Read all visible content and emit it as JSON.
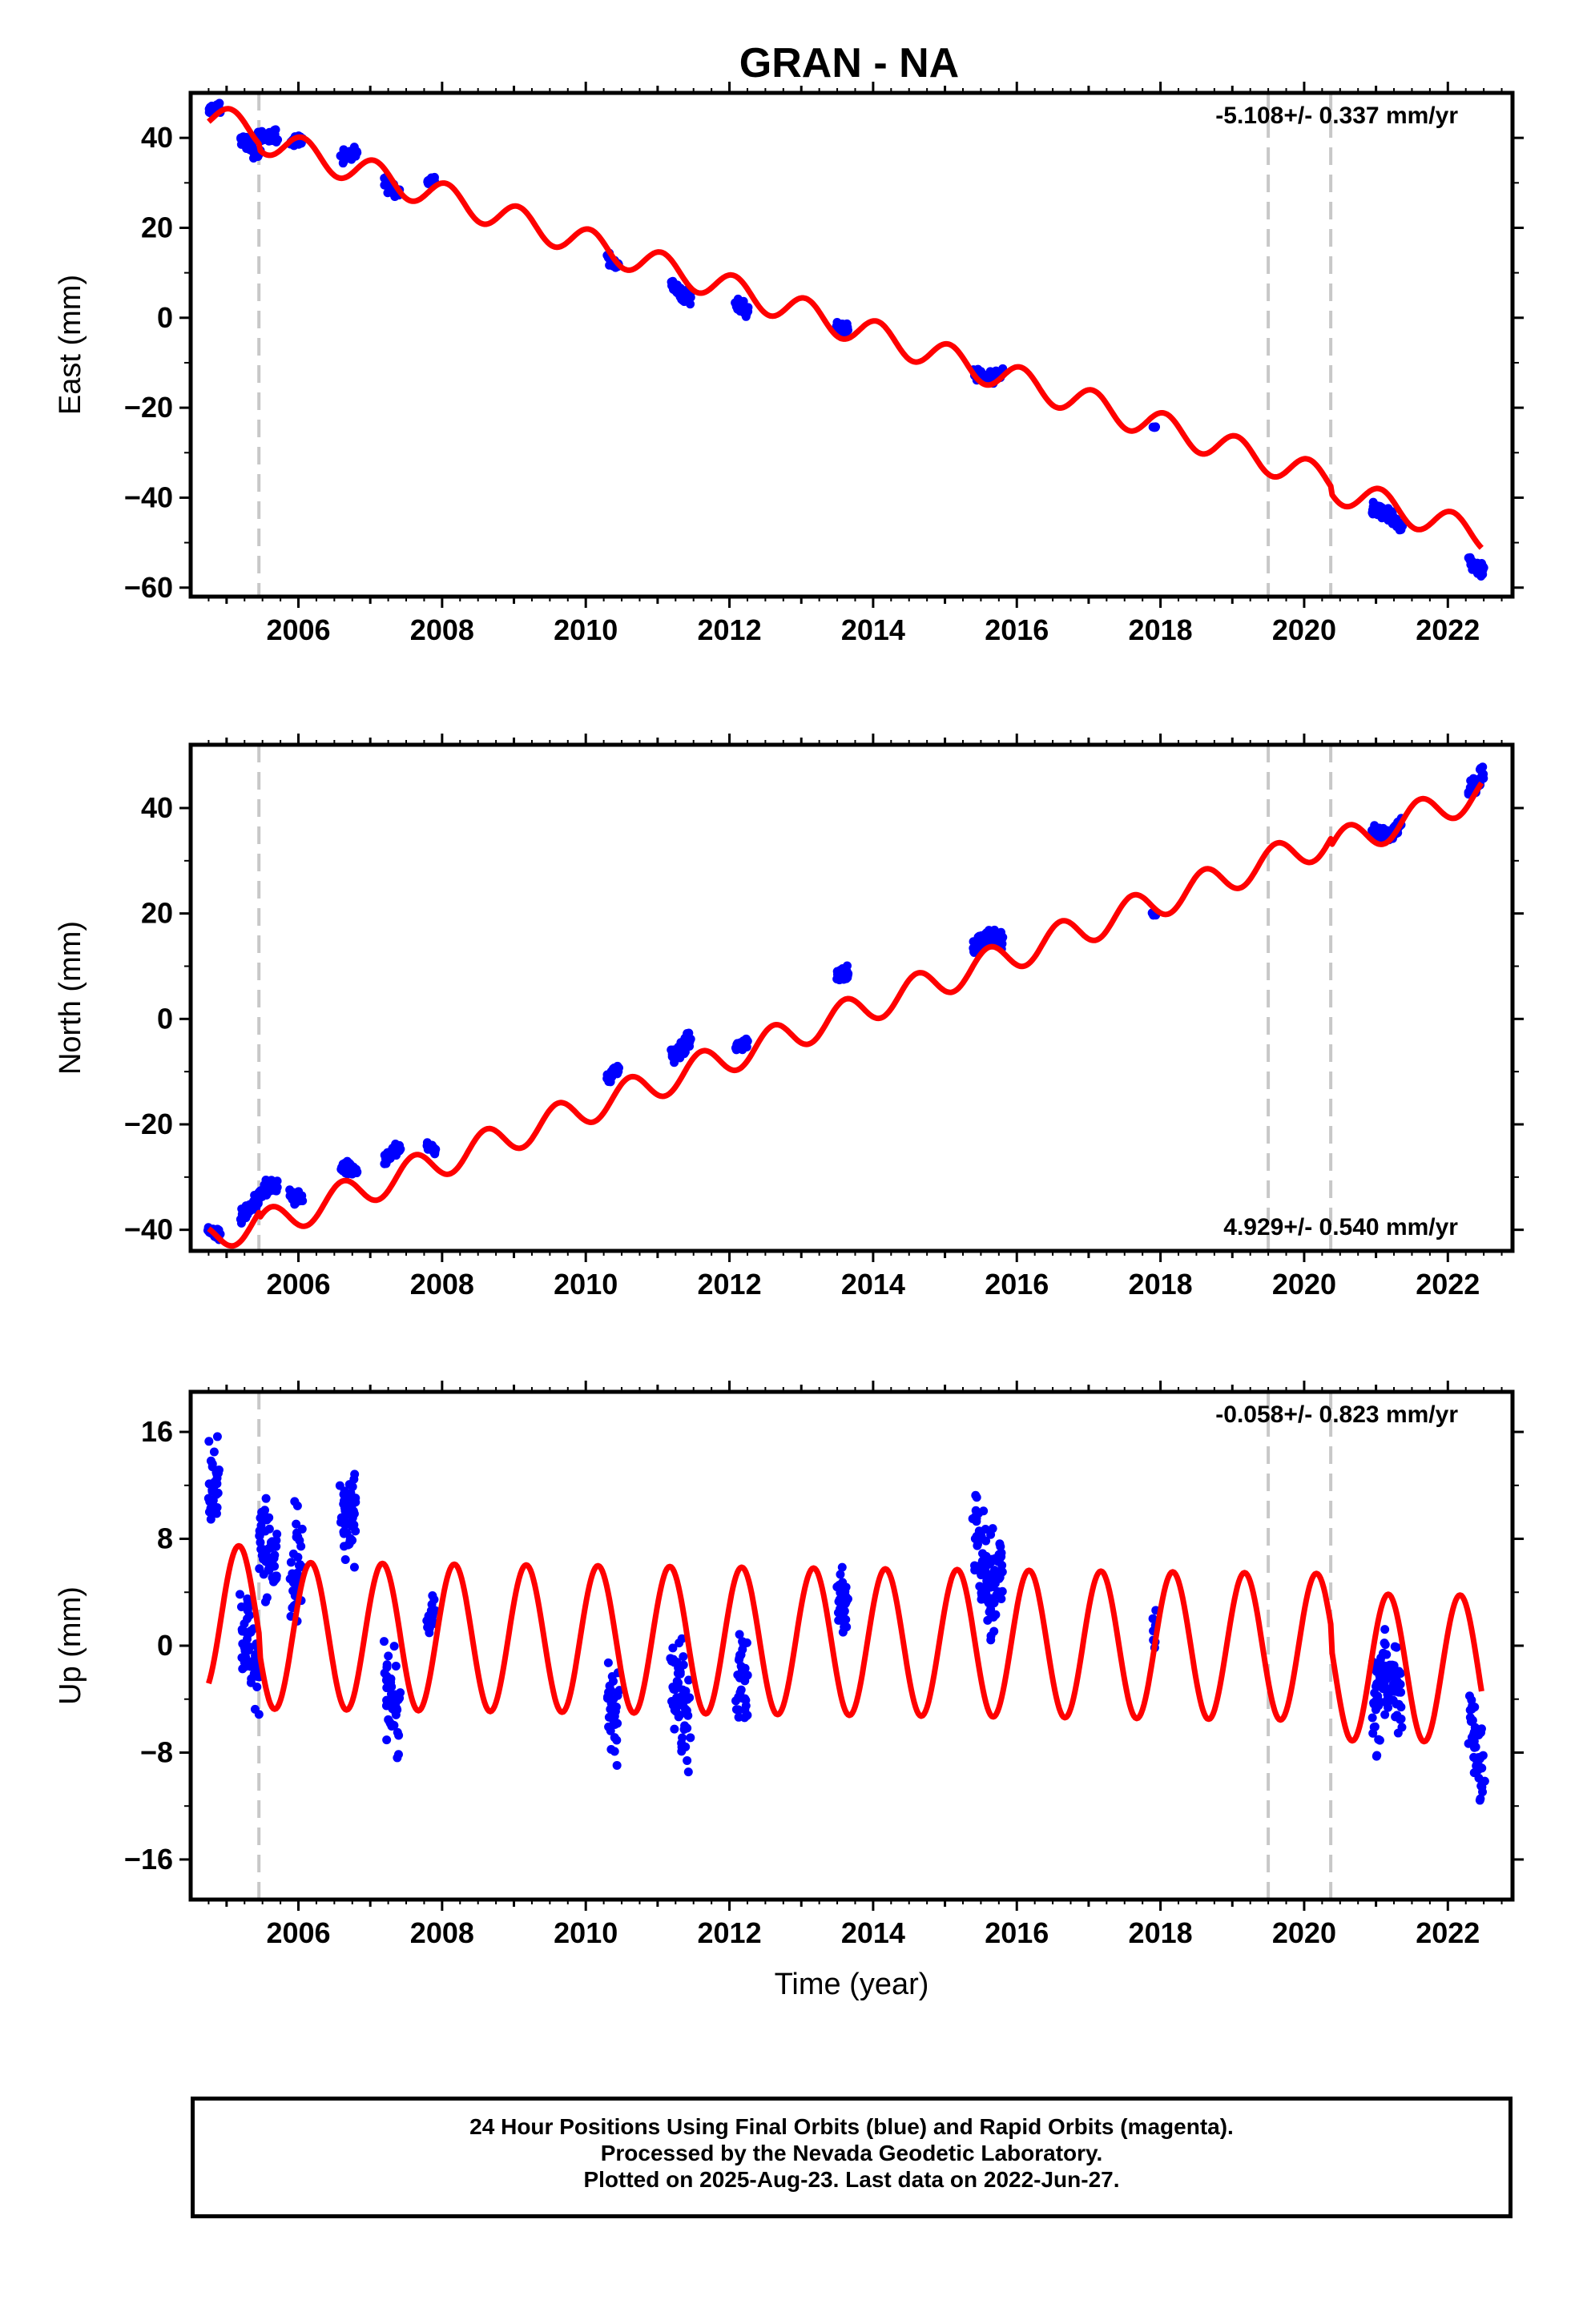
{
  "title": "GRAN - NA",
  "footer": {
    "line1": "24 Hour Positions Using Final Orbits (blue) and Rapid Orbits (magenta).",
    "line2": "Processed by the Nevada Geodetic Laboratory.",
    "line3": "Plotted on 2025-Aug-23. Last data on 2022-Jun-27."
  },
  "colors": {
    "data": "#0000ff",
    "model": "#ff0000",
    "breaks": "#c8c8c8",
    "axes": "#000000"
  },
  "chart_data": [
    {
      "type": "scatter",
      "ylabel": "East (mm)",
      "xlabel": "",
      "annotation": "-5.108+/- 0.337 mm/yr",
      "annotation_position": "top-right",
      "xlim": [
        2004.5,
        2022.9
      ],
      "ylim": [
        -62,
        50
      ],
      "yticks": [
        40,
        20,
        0,
        -20,
        -40,
        -60
      ],
      "xticks": [
        2006,
        2008,
        2010,
        2012,
        2014,
        2016,
        2018,
        2020,
        2022
      ],
      "breaks": [
        2005.45,
        2019.5,
        2020.37
      ],
      "trend": {
        "rate_mm_per_yr": -5.108,
        "value_at_2004_8": 44.5,
        "annual_amp": 3.2,
        "annual_phase": 1.2
      },
      "observed_clusters": [
        {
          "start": 2004.75,
          "end": 2004.9,
          "center": 46.5,
          "spread": 1.6
        },
        {
          "start": 2005.2,
          "end": 2005.45,
          "center": 38.0,
          "spread": 2.0
        },
        {
          "start": 2005.45,
          "end": 2005.7,
          "center": 40.0,
          "spread": 2.0
        },
        {
          "start": 2005.9,
          "end": 2006.05,
          "center": 39.5,
          "spread": 1.5
        },
        {
          "start": 2006.6,
          "end": 2006.8,
          "center": 36.0,
          "spread": 2.0
        },
        {
          "start": 2007.2,
          "end": 2007.4,
          "center": 29.0,
          "spread": 2.0
        },
        {
          "start": 2007.8,
          "end": 2007.9,
          "center": 30.5,
          "spread": 0.8
        },
        {
          "start": 2010.3,
          "end": 2010.45,
          "center": 12.5,
          "spread": 1.5
        },
        {
          "start": 2011.2,
          "end": 2011.45,
          "center": 5.5,
          "spread": 2.0
        },
        {
          "start": 2012.1,
          "end": 2012.25,
          "center": 2.5,
          "spread": 2.0
        },
        {
          "start": 2013.5,
          "end": 2013.65,
          "center": -2.5,
          "spread": 1.5
        },
        {
          "start": 2015.4,
          "end": 2015.8,
          "center": -13.5,
          "spread": 1.8
        },
        {
          "start": 2017.9,
          "end": 2017.93,
          "center": -24.3,
          "spread": 0.3
        },
        {
          "start": 2020.95,
          "end": 2021.35,
          "center": -43.5,
          "spread": 2.0
        },
        {
          "start": 2022.3,
          "end": 2022.5,
          "center": -55.5,
          "spread": 2.0
        }
      ]
    },
    {
      "type": "scatter",
      "ylabel": "North (mm)",
      "xlabel": "",
      "annotation": "4.929+/- 0.540 mm/yr",
      "annotation_position": "bottom-right",
      "xlim": [
        2004.5,
        2022.9
      ],
      "ylim": [
        -44,
        52
      ],
      "yticks": [
        40,
        20,
        0,
        -20,
        -40
      ],
      "xticks": [
        2006,
        2008,
        2010,
        2012,
        2014,
        2016,
        2018,
        2020,
        2022
      ],
      "breaks": [
        2005.45,
        2019.5,
        2020.37
      ],
      "trend": {
        "rate_mm_per_yr": 4.929,
        "value_at_2004_8": -41.5,
        "annual_amp": 3.0,
        "annual_phase": 4.0
      },
      "observed_clusters": [
        {
          "start": 2004.75,
          "end": 2004.9,
          "center": -40.5,
          "spread": 1.2
        },
        {
          "start": 2005.2,
          "end": 2005.45,
          "center": -36.0,
          "spread": 2.0
        },
        {
          "start": 2005.45,
          "end": 2005.7,
          "center": -32.0,
          "spread": 1.5
        },
        {
          "start": 2005.9,
          "end": 2006.05,
          "center": -34.0,
          "spread": 1.5
        },
        {
          "start": 2006.6,
          "end": 2006.8,
          "center": -28.0,
          "spread": 1.8
        },
        {
          "start": 2007.2,
          "end": 2007.4,
          "center": -25.5,
          "spread": 1.5
        },
        {
          "start": 2007.8,
          "end": 2007.9,
          "center": -24.5,
          "spread": 1.0
        },
        {
          "start": 2010.3,
          "end": 2010.45,
          "center": -10.5,
          "spread": 1.5
        },
        {
          "start": 2011.2,
          "end": 2011.45,
          "center": -5.5,
          "spread": 2.5
        },
        {
          "start": 2012.1,
          "end": 2012.25,
          "center": -5.0,
          "spread": 1.5
        },
        {
          "start": 2013.5,
          "end": 2013.65,
          "center": 8.5,
          "spread": 1.8
        },
        {
          "start": 2015.4,
          "end": 2015.8,
          "center": 15.5,
          "spread": 1.8
        },
        {
          "start": 2017.9,
          "end": 2017.93,
          "center": 20.0,
          "spread": 1.0
        },
        {
          "start": 2020.95,
          "end": 2021.35,
          "center": 35.0,
          "spread": 1.8
        },
        {
          "start": 2022.3,
          "end": 2022.5,
          "center": 45.0,
          "spread": 2.5
        }
      ]
    },
    {
      "type": "scatter",
      "ylabel": "Up (mm)",
      "xlabel": "Time (year)",
      "annotation": "-0.058+/- 0.823 mm/yr",
      "annotation_position": "top-right",
      "xlim": [
        2004.5,
        2022.9
      ],
      "ylim": [
        -19,
        19
      ],
      "yticks": [
        16,
        8,
        0,
        -8,
        -16
      ],
      "xticks": [
        2006,
        2008,
        2010,
        2012,
        2014,
        2016,
        2018,
        2020,
        2022
      ],
      "breaks": [
        2005.45,
        2019.5,
        2020.37
      ],
      "trend": {
        "rate_mm_per_yr": -0.058,
        "value_at_2004_8": 2.0,
        "annual_amp": 5.5,
        "annual_phase": 0.5
      },
      "observed_clusters": [
        {
          "start": 2004.75,
          "end": 2004.9,
          "center": 12.0,
          "spread": 4.0
        },
        {
          "start": 2005.2,
          "end": 2005.45,
          "center": 0.0,
          "spread": 5.0
        },
        {
          "start": 2005.45,
          "end": 2005.7,
          "center": 7.0,
          "spread": 5.0
        },
        {
          "start": 2005.9,
          "end": 2006.05,
          "center": 5.0,
          "spread": 6.0
        },
        {
          "start": 2006.6,
          "end": 2006.8,
          "center": 9.0,
          "spread": 5.0
        },
        {
          "start": 2007.2,
          "end": 2007.4,
          "center": -3.5,
          "spread": 5.0
        },
        {
          "start": 2007.8,
          "end": 2007.9,
          "center": 2.0,
          "spread": 2.0
        },
        {
          "start": 2010.3,
          "end": 2010.45,
          "center": -5.0,
          "spread": 5.0
        },
        {
          "start": 2011.2,
          "end": 2011.45,
          "center": -3.5,
          "spread": 6.0
        },
        {
          "start": 2012.1,
          "end": 2012.25,
          "center": -2.5,
          "spread": 5.0
        },
        {
          "start": 2013.5,
          "end": 2013.65,
          "center": 3.0,
          "spread": 5.0
        },
        {
          "start": 2015.4,
          "end": 2015.8,
          "center": 5.0,
          "spread": 6.0
        },
        {
          "start": 2017.9,
          "end": 2017.93,
          "center": 1.0,
          "spread": 2.5
        },
        {
          "start": 2020.95,
          "end": 2021.35,
          "center": -2.5,
          "spread": 5.0
        },
        {
          "start": 2022.3,
          "end": 2022.5,
          "center": -7.5,
          "spread": 5.0
        }
      ]
    }
  ]
}
